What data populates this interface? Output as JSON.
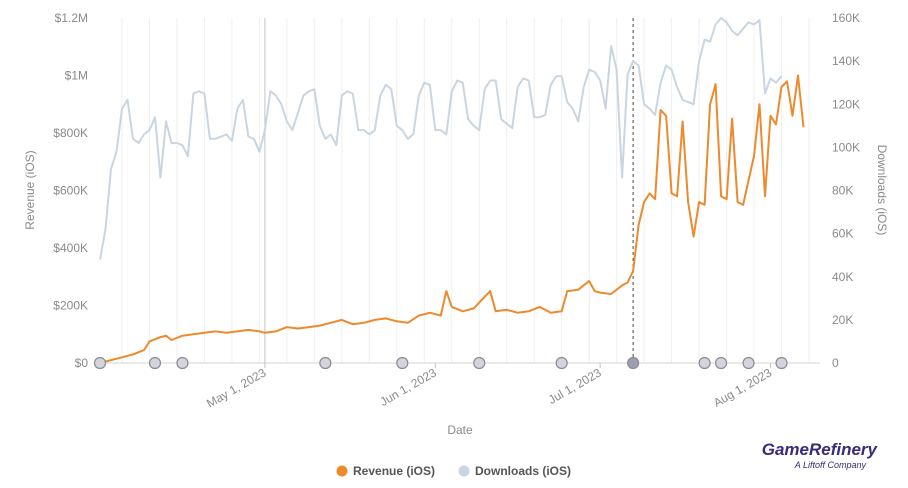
{
  "chart_data": {
    "type": "line",
    "xlabel": "Date",
    "ylabel_left": "Revenue (iOS)",
    "ylabel_right": "Downloads (iOS)",
    "x_range": [
      "2023-04-01",
      "2023-08-10"
    ],
    "x_ticks": [
      {
        "date": "2023-05-01",
        "label": "May 1, 2023"
      },
      {
        "date": "2023-06-01",
        "label": "Jun 1, 2023"
      },
      {
        "date": "2023-07-01",
        "label": "Jul 1, 2023"
      },
      {
        "date": "2023-08-01",
        "label": "Aug 1, 2023"
      }
    ],
    "y_left": {
      "min": 0,
      "max": 1200000,
      "ticks": [
        {
          "v": 0,
          "label": "$0"
        },
        {
          "v": 200000,
          "label": "$200K"
        },
        {
          "v": 400000,
          "label": "$400K"
        },
        {
          "v": 600000,
          "label": "$600K"
        },
        {
          "v": 800000,
          "label": "$800K"
        },
        {
          "v": 1000000,
          "label": "$1M"
        },
        {
          "v": 1200000,
          "label": "$1.2M"
        }
      ]
    },
    "y_right": {
      "min": 0,
      "max": 160000,
      "ticks": [
        {
          "v": 0,
          "label": "0"
        },
        {
          "v": 20000,
          "label": "20K"
        },
        {
          "v": 40000,
          "label": "40K"
        },
        {
          "v": 60000,
          "label": "60K"
        },
        {
          "v": 80000,
          "label": "80K"
        },
        {
          "v": 100000,
          "label": "100K"
        },
        {
          "v": 120000,
          "label": "120K"
        },
        {
          "v": 140000,
          "label": "140K"
        },
        {
          "v": 160000,
          "label": "160K"
        }
      ]
    },
    "grid": "vertical",
    "reference_lines": [
      {
        "date": "2023-05-01",
        "style": "solid"
      },
      {
        "date": "2023-07-07",
        "style": "dashed"
      }
    ],
    "event_markers": [
      {
        "date": "2023-04-01"
      },
      {
        "date": "2023-04-11"
      },
      {
        "date": "2023-04-16"
      },
      {
        "date": "2023-05-12"
      },
      {
        "date": "2023-05-26"
      },
      {
        "date": "2023-06-09"
      },
      {
        "date": "2023-06-24"
      },
      {
        "date": "2023-07-07",
        "highlight": true
      },
      {
        "date": "2023-07-20"
      },
      {
        "date": "2023-07-23"
      },
      {
        "date": "2023-07-28"
      },
      {
        "date": "2023-08-03"
      }
    ],
    "series": [
      {
        "name": "Revenue (iOS)",
        "axis": "left",
        "color": "#ed8a2e",
        "points": [
          [
            "2023-04-01",
            0
          ],
          [
            "2023-04-03",
            10000
          ],
          [
            "2023-04-05",
            20000
          ],
          [
            "2023-04-07",
            30000
          ],
          [
            "2023-04-09",
            45000
          ],
          [
            "2023-04-10",
            75000
          ],
          [
            "2023-04-12",
            90000
          ],
          [
            "2023-04-13",
            95000
          ],
          [
            "2023-04-14",
            80000
          ],
          [
            "2023-04-16",
            95000
          ],
          [
            "2023-04-18",
            100000
          ],
          [
            "2023-04-20",
            105000
          ],
          [
            "2023-04-22",
            110000
          ],
          [
            "2023-04-24",
            105000
          ],
          [
            "2023-04-26",
            110000
          ],
          [
            "2023-04-28",
            115000
          ],
          [
            "2023-04-30",
            110000
          ],
          [
            "2023-05-01",
            105000
          ],
          [
            "2023-05-03",
            110000
          ],
          [
            "2023-05-05",
            125000
          ],
          [
            "2023-05-07",
            120000
          ],
          [
            "2023-05-09",
            125000
          ],
          [
            "2023-05-11",
            130000
          ],
          [
            "2023-05-13",
            140000
          ],
          [
            "2023-05-15",
            150000
          ],
          [
            "2023-05-17",
            135000
          ],
          [
            "2023-05-19",
            140000
          ],
          [
            "2023-05-21",
            150000
          ],
          [
            "2023-05-23",
            155000
          ],
          [
            "2023-05-25",
            145000
          ],
          [
            "2023-05-27",
            140000
          ],
          [
            "2023-05-29",
            165000
          ],
          [
            "2023-05-31",
            175000
          ],
          [
            "2023-06-02",
            165000
          ],
          [
            "2023-06-03",
            250000
          ],
          [
            "2023-06-04",
            195000
          ],
          [
            "2023-06-06",
            180000
          ],
          [
            "2023-06-08",
            190000
          ],
          [
            "2023-06-09",
            210000
          ],
          [
            "2023-06-11",
            250000
          ],
          [
            "2023-06-12",
            180000
          ],
          [
            "2023-06-14",
            185000
          ],
          [
            "2023-06-16",
            175000
          ],
          [
            "2023-06-18",
            180000
          ],
          [
            "2023-06-20",
            195000
          ],
          [
            "2023-06-22",
            175000
          ],
          [
            "2023-06-24",
            180000
          ],
          [
            "2023-06-25",
            250000
          ],
          [
            "2023-06-27",
            255000
          ],
          [
            "2023-06-29",
            285000
          ],
          [
            "2023-06-30",
            250000
          ],
          [
            "2023-07-01",
            245000
          ],
          [
            "2023-07-03",
            240000
          ],
          [
            "2023-07-05",
            270000
          ],
          [
            "2023-07-06",
            280000
          ],
          [
            "2023-07-07",
            320000
          ],
          [
            "2023-07-08",
            480000
          ],
          [
            "2023-07-09",
            560000
          ],
          [
            "2023-07-10",
            590000
          ],
          [
            "2023-07-11",
            570000
          ],
          [
            "2023-07-12",
            880000
          ],
          [
            "2023-07-13",
            860000
          ],
          [
            "2023-07-14",
            590000
          ],
          [
            "2023-07-15",
            580000
          ],
          [
            "2023-07-16",
            840000
          ],
          [
            "2023-07-17",
            560000
          ],
          [
            "2023-07-18",
            440000
          ],
          [
            "2023-07-19",
            560000
          ],
          [
            "2023-07-20",
            550000
          ],
          [
            "2023-07-21",
            900000
          ],
          [
            "2023-07-22",
            970000
          ],
          [
            "2023-07-23",
            580000
          ],
          [
            "2023-07-24",
            570000
          ],
          [
            "2023-07-25",
            850000
          ],
          [
            "2023-07-26",
            560000
          ],
          [
            "2023-07-27",
            550000
          ],
          [
            "2023-07-29",
            720000
          ],
          [
            "2023-07-30",
            900000
          ],
          [
            "2023-07-31",
            580000
          ],
          [
            "2023-08-01",
            860000
          ],
          [
            "2023-08-02",
            830000
          ],
          [
            "2023-08-03",
            960000
          ],
          [
            "2023-08-04",
            980000
          ],
          [
            "2023-08-05",
            860000
          ],
          [
            "2023-08-06",
            1000000
          ],
          [
            "2023-08-07",
            820000
          ]
        ]
      },
      {
        "name": "Downloads (iOS)",
        "axis": "right",
        "color": "#c9d5e0",
        "points": [
          [
            "2023-04-01",
            48000
          ],
          [
            "2023-04-02",
            62000
          ],
          [
            "2023-04-03",
            90000
          ],
          [
            "2023-04-04",
            98000
          ],
          [
            "2023-04-05",
            118000
          ],
          [
            "2023-04-06",
            122000
          ],
          [
            "2023-04-07",
            104000
          ],
          [
            "2023-04-08",
            102000
          ],
          [
            "2023-04-09",
            106000
          ],
          [
            "2023-04-10",
            108000
          ],
          [
            "2023-04-11",
            114000
          ],
          [
            "2023-04-12",
            86000
          ],
          [
            "2023-04-13",
            112000
          ],
          [
            "2023-04-14",
            102000
          ],
          [
            "2023-04-15",
            102000
          ],
          [
            "2023-04-16",
            101000
          ],
          [
            "2023-04-17",
            96000
          ],
          [
            "2023-04-18",
            125000
          ],
          [
            "2023-04-19",
            126000
          ],
          [
            "2023-04-20",
            125000
          ],
          [
            "2023-04-21",
            104000
          ],
          [
            "2023-04-22",
            104000
          ],
          [
            "2023-04-24",
            106000
          ],
          [
            "2023-04-25",
            103000
          ],
          [
            "2023-04-26",
            118000
          ],
          [
            "2023-04-27",
            122000
          ],
          [
            "2023-04-28",
            105000
          ],
          [
            "2023-04-29",
            104000
          ],
          [
            "2023-04-30",
            98000
          ],
          [
            "2023-05-01",
            108000
          ],
          [
            "2023-05-02",
            126000
          ],
          [
            "2023-05-03",
            124000
          ],
          [
            "2023-05-04",
            120000
          ],
          [
            "2023-05-05",
            112000
          ],
          [
            "2023-05-06",
            108000
          ],
          [
            "2023-05-07",
            116000
          ],
          [
            "2023-05-08",
            124000
          ],
          [
            "2023-05-09",
            126000
          ],
          [
            "2023-05-10",
            127000
          ],
          [
            "2023-05-11",
            110000
          ],
          [
            "2023-05-12",
            104000
          ],
          [
            "2023-05-13",
            106000
          ],
          [
            "2023-05-14",
            101000
          ],
          [
            "2023-05-15",
            124000
          ],
          [
            "2023-05-16",
            126000
          ],
          [
            "2023-05-17",
            125000
          ],
          [
            "2023-05-18",
            108000
          ],
          [
            "2023-05-19",
            108000
          ],
          [
            "2023-05-20",
            106000
          ],
          [
            "2023-05-21",
            108000
          ],
          [
            "2023-05-22",
            124000
          ],
          [
            "2023-05-23",
            129000
          ],
          [
            "2023-05-24",
            127000
          ],
          [
            "2023-05-25",
            110000
          ],
          [
            "2023-05-26",
            108000
          ],
          [
            "2023-05-27",
            104000
          ],
          [
            "2023-05-28",
            106000
          ],
          [
            "2023-05-29",
            124000
          ],
          [
            "2023-05-30",
            130000
          ],
          [
            "2023-05-31",
            129000
          ],
          [
            "2023-06-01",
            108000
          ],
          [
            "2023-06-02",
            108000
          ],
          [
            "2023-06-03",
            106000
          ],
          [
            "2023-06-04",
            126000
          ],
          [
            "2023-06-05",
            131000
          ],
          [
            "2023-06-06",
            130000
          ],
          [
            "2023-06-07",
            113000
          ],
          [
            "2023-06-08",
            110000
          ],
          [
            "2023-06-09",
            108000
          ],
          [
            "2023-06-10",
            127000
          ],
          [
            "2023-06-11",
            131000
          ],
          [
            "2023-06-12",
            131000
          ],
          [
            "2023-06-13",
            113000
          ],
          [
            "2023-06-14",
            111000
          ],
          [
            "2023-06-15",
            109000
          ],
          [
            "2023-06-16",
            128000
          ],
          [
            "2023-06-17",
            132000
          ],
          [
            "2023-06-18",
            131000
          ],
          [
            "2023-06-19",
            114000
          ],
          [
            "2023-06-20",
            114000
          ],
          [
            "2023-06-21",
            115000
          ],
          [
            "2023-06-22",
            129000
          ],
          [
            "2023-06-23",
            133000
          ],
          [
            "2023-06-24",
            133000
          ],
          [
            "2023-06-25",
            121000
          ],
          [
            "2023-06-26",
            118000
          ],
          [
            "2023-06-27",
            112000
          ],
          [
            "2023-06-28",
            128000
          ],
          [
            "2023-06-29",
            136000
          ],
          [
            "2023-06-30",
            135000
          ],
          [
            "2023-07-01",
            131000
          ],
          [
            "2023-07-02",
            118000
          ],
          [
            "2023-07-03",
            147000
          ],
          [
            "2023-07-04",
            136000
          ],
          [
            "2023-07-05",
            86000
          ],
          [
            "2023-07-06",
            134000
          ],
          [
            "2023-07-07",
            140000
          ],
          [
            "2023-07-08",
            138000
          ],
          [
            "2023-07-09",
            120000
          ],
          [
            "2023-07-10",
            118000
          ],
          [
            "2023-07-11",
            115000
          ],
          [
            "2023-07-12",
            130000
          ],
          [
            "2023-07-13",
            138000
          ],
          [
            "2023-07-14",
            136000
          ],
          [
            "2023-07-15",
            128000
          ],
          [
            "2023-07-16",
            122000
          ],
          [
            "2023-07-17",
            121000
          ],
          [
            "2023-07-18",
            120000
          ],
          [
            "2023-07-19",
            140000
          ],
          [
            "2023-07-20",
            150000
          ],
          [
            "2023-07-21",
            149000
          ],
          [
            "2023-07-22",
            157000
          ],
          [
            "2023-07-23",
            160000
          ],
          [
            "2023-07-24",
            158000
          ],
          [
            "2023-07-25",
            154000
          ],
          [
            "2023-07-26",
            152000
          ],
          [
            "2023-07-27",
            155000
          ],
          [
            "2023-07-28",
            158000
          ],
          [
            "2023-07-29",
            157000
          ],
          [
            "2023-07-30",
            159000
          ],
          [
            "2023-07-31",
            125000
          ],
          [
            "2023-08-01",
            132000
          ],
          [
            "2023-08-02",
            130000
          ],
          [
            "2023-08-03",
            133000
          ]
        ]
      }
    ]
  },
  "legend": {
    "items": [
      {
        "label": "Revenue (iOS)",
        "color": "#ed8a2e"
      },
      {
        "label": "Downloads (iOS)",
        "color": "#c9d5e0"
      }
    ]
  },
  "brand": {
    "name": "GameRefinery",
    "tagline": "A Liftoff Company"
  }
}
